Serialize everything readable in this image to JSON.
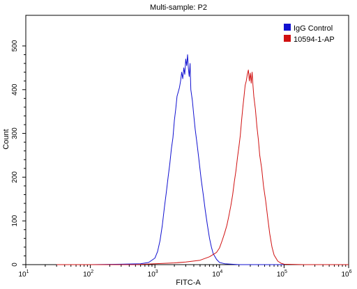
{
  "chart_data": {
    "type": "line",
    "title": "Multi-sample: P2",
    "xlabel": "FITC-A",
    "ylabel": "Count",
    "x_scale": "log",
    "xlim": [
      10,
      1000000
    ],
    "ylim": [
      0,
      570
    ],
    "x_ticks": [
      {
        "value": 10,
        "base": "10",
        "exp": "1"
      },
      {
        "value": 100,
        "base": "10",
        "exp": "2"
      },
      {
        "value": 1000,
        "base": "10",
        "exp": "3"
      },
      {
        "value": 10000,
        "base": "10",
        "exp": "4"
      },
      {
        "value": 100000,
        "base": "10",
        "exp": "5"
      },
      {
        "value": 1000000,
        "base": "10",
        "exp": "6"
      }
    ],
    "y_ticks": [
      0,
      100,
      200,
      300,
      400,
      500
    ],
    "grid": false,
    "legend_position": "top-right",
    "series": [
      {
        "name": "IgG Control",
        "color": "#1010d0",
        "points": [
          [
            30,
            0
          ],
          [
            100,
            0
          ],
          [
            300,
            1
          ],
          [
            600,
            2
          ],
          [
            800,
            5
          ],
          [
            1000,
            15
          ],
          [
            1100,
            30
          ],
          [
            1200,
            55
          ],
          [
            1300,
            90
          ],
          [
            1400,
            130
          ],
          [
            1500,
            165
          ],
          [
            1600,
            200
          ],
          [
            1700,
            230
          ],
          [
            1800,
            265
          ],
          [
            1900,
            290
          ],
          [
            2000,
            330
          ],
          [
            2100,
            355
          ],
          [
            2200,
            385
          ],
          [
            2300,
            395
          ],
          [
            2400,
            405
          ],
          [
            2500,
            420
          ],
          [
            2600,
            440
          ],
          [
            2700,
            425
          ],
          [
            2800,
            450
          ],
          [
            2900,
            435
          ],
          [
            3000,
            470
          ],
          [
            3100,
            455
          ],
          [
            3200,
            480
          ],
          [
            3300,
            448
          ],
          [
            3400,
            430
          ],
          [
            3500,
            460
          ],
          [
            3600,
            400
          ],
          [
            3800,
            375
          ],
          [
            4000,
            340
          ],
          [
            4200,
            310
          ],
          [
            4500,
            275
          ],
          [
            4800,
            240
          ],
          [
            5200,
            195
          ],
          [
            5600,
            160
          ],
          [
            6000,
            125
          ],
          [
            6500,
            90
          ],
          [
            7000,
            60
          ],
          [
            7500,
            40
          ],
          [
            8000,
            25
          ],
          [
            9000,
            12
          ],
          [
            10000,
            5
          ],
          [
            12000,
            2
          ],
          [
            20000,
            0
          ],
          [
            100000,
            0
          ]
        ]
      },
      {
        "name": "10594-1-AP",
        "color": "#d01010",
        "points": [
          [
            30,
            0
          ],
          [
            500,
            0
          ],
          [
            1000,
            2
          ],
          [
            2000,
            4
          ],
          [
            3000,
            6
          ],
          [
            5000,
            10
          ],
          [
            7000,
            18
          ],
          [
            9000,
            28
          ],
          [
            10000,
            38
          ],
          [
            11000,
            55
          ],
          [
            12000,
            72
          ],
          [
            13000,
            90
          ],
          [
            14000,
            112
          ],
          [
            15000,
            135
          ],
          [
            16000,
            160
          ],
          [
            17000,
            190
          ],
          [
            18000,
            215
          ],
          [
            19000,
            245
          ],
          [
            20000,
            270
          ],
          [
            21000,
            295
          ],
          [
            22000,
            330
          ],
          [
            23000,
            360
          ],
          [
            24000,
            385
          ],
          [
            25000,
            410
          ],
          [
            26000,
            420
          ],
          [
            27000,
            435
          ],
          [
            28000,
            445
          ],
          [
            29000,
            420
          ],
          [
            30000,
            438
          ],
          [
            31000,
            415
          ],
          [
            32000,
            440
          ],
          [
            33000,
            410
          ],
          [
            34000,
            385
          ],
          [
            36000,
            355
          ],
          [
            38000,
            315
          ],
          [
            40000,
            285
          ],
          [
            42000,
            250
          ],
          [
            45000,
            220
          ],
          [
            48000,
            180
          ],
          [
            52000,
            145
          ],
          [
            56000,
            105
          ],
          [
            60000,
            70
          ],
          [
            65000,
            40
          ],
          [
            70000,
            22
          ],
          [
            80000,
            8
          ],
          [
            90000,
            3
          ],
          [
            100000,
            1
          ],
          [
            200000,
            0
          ],
          [
            1000000,
            0
          ]
        ]
      }
    ]
  }
}
